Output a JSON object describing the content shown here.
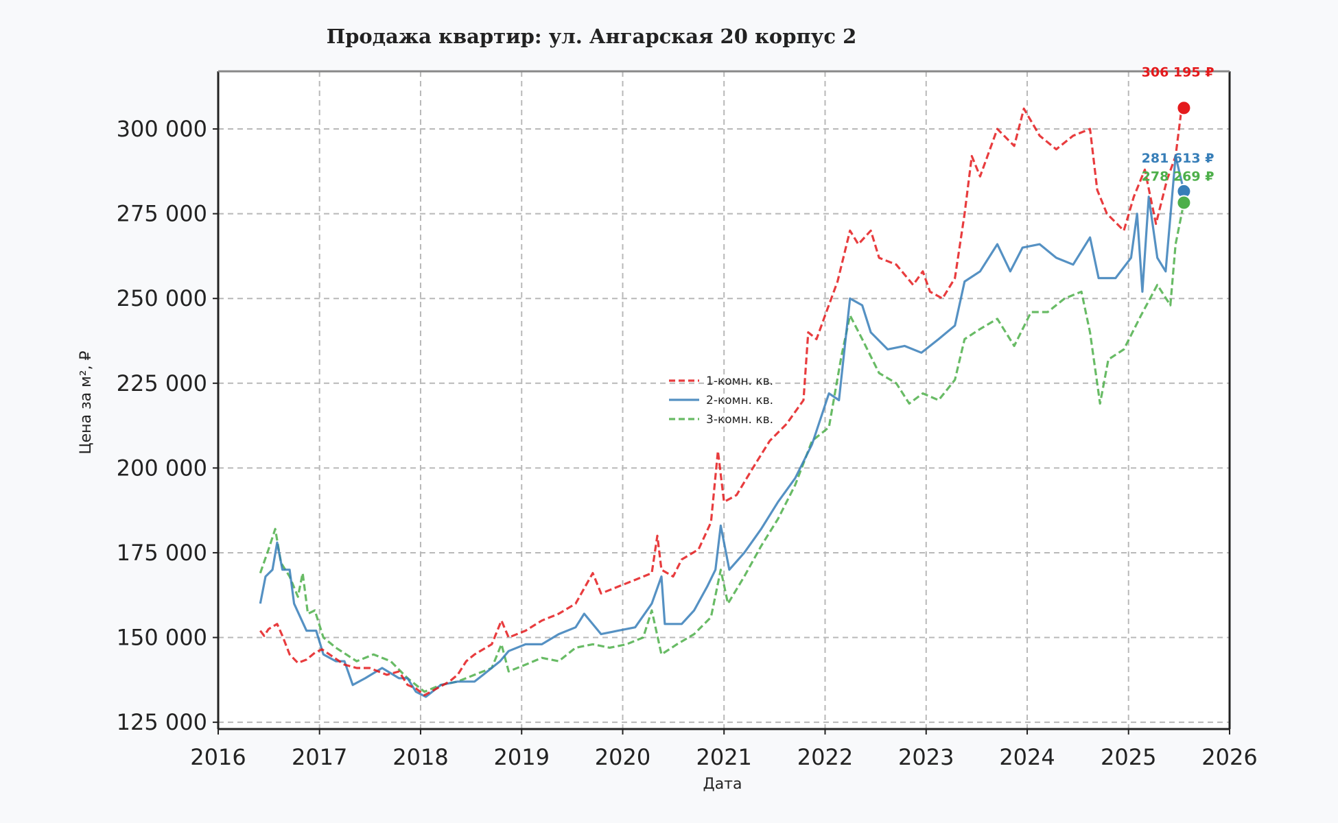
{
  "chart_data": {
    "type": "line",
    "title": "Продажа квартир: ул. Ангарская 20 корпус 2",
    "xlabel": "Дата",
    "ylabel": "Цена за м², ₽",
    "xlim": [
      "2016-01-01",
      "2026-01-01"
    ],
    "ylim": [
      123000,
      317000
    ],
    "x_ticks": [
      "2016",
      "2017",
      "2018",
      "2019",
      "2020",
      "2021",
      "2022",
      "2023",
      "2024",
      "2025",
      "2026"
    ],
    "y_ticks": [
      125000,
      150000,
      175000,
      200000,
      225000,
      250000,
      275000,
      300000
    ],
    "y_tick_labels": [
      "125 000",
      "150 000",
      "175 000",
      "200 000",
      "225 000",
      "250 000",
      "275 000",
      "300 000"
    ],
    "grid": true,
    "legend_position": "center",
    "series": [
      {
        "name": "1-комн. кв.",
        "color": "#e41a1c",
        "style": "dashed",
        "end_label": "306 195 ₽",
        "end_value": 306195,
        "points": [
          [
            "2016-06-01",
            152000
          ],
          [
            "2016-06-15",
            150500
          ],
          [
            "2016-07-01",
            152500
          ],
          [
            "2016-08-01",
            154000
          ],
          [
            "2016-08-20",
            150500
          ],
          [
            "2016-09-15",
            145000
          ],
          [
            "2016-10-15",
            142500
          ],
          [
            "2016-11-15",
            143500
          ],
          [
            "2016-12-15",
            145500
          ],
          [
            "2017-01-10",
            146500
          ],
          [
            "2017-02-15",
            144500
          ],
          [
            "2017-04-01",
            142000
          ],
          [
            "2017-05-15",
            141000
          ],
          [
            "2017-07-01",
            141000
          ],
          [
            "2017-09-01",
            139000
          ],
          [
            "2017-10-15",
            140000
          ],
          [
            "2017-11-15",
            136000
          ],
          [
            "2017-12-15",
            135000
          ],
          [
            "2018-01-15",
            133000
          ],
          [
            "2018-03-01",
            135000
          ],
          [
            "2018-04-15",
            137000
          ],
          [
            "2018-05-15",
            139000
          ],
          [
            "2018-06-15",
            143000
          ],
          [
            "2018-07-15",
            145000
          ],
          [
            "2018-09-15",
            148000
          ],
          [
            "2018-10-20",
            155000
          ],
          [
            "2018-11-15",
            150000
          ],
          [
            "2019-01-15",
            152000
          ],
          [
            "2019-03-15",
            155000
          ],
          [
            "2019-05-15",
            157000
          ],
          [
            "2019-07-15",
            160000
          ],
          [
            "2019-09-15",
            169000
          ],
          [
            "2019-10-15",
            163000
          ],
          [
            "2019-12-15",
            165000
          ],
          [
            "2020-02-15",
            167000
          ],
          [
            "2020-04-15",
            169000
          ],
          [
            "2020-05-05",
            180000
          ],
          [
            "2020-05-20",
            170000
          ],
          [
            "2020-07-01",
            168000
          ],
          [
            "2020-08-01",
            173000
          ],
          [
            "2020-10-01",
            176000
          ],
          [
            "2020-11-15",
            184000
          ],
          [
            "2020-12-10",
            205000
          ],
          [
            "2021-01-01",
            190000
          ],
          [
            "2021-02-15",
            192000
          ],
          [
            "2021-04-15",
            200000
          ],
          [
            "2021-06-15",
            208000
          ],
          [
            "2021-08-15",
            213000
          ],
          [
            "2021-10-15",
            220000
          ],
          [
            "2021-11-01",
            240000
          ],
          [
            "2021-12-01",
            238000
          ],
          [
            "2022-01-01",
            245000
          ],
          [
            "2022-02-15",
            255000
          ],
          [
            "2022-04-01",
            270000
          ],
          [
            "2022-05-01",
            266000
          ],
          [
            "2022-06-15",
            270000
          ],
          [
            "2022-07-15",
            262000
          ],
          [
            "2022-09-15",
            260000
          ],
          [
            "2022-11-15",
            254000
          ],
          [
            "2022-12-20",
            258000
          ],
          [
            "2023-01-15",
            252000
          ],
          [
            "2023-03-01",
            250000
          ],
          [
            "2023-04-15",
            256000
          ],
          [
            "2023-05-20",
            275000
          ],
          [
            "2023-06-15",
            292000
          ],
          [
            "2023-07-15",
            286000
          ],
          [
            "2023-09-15",
            300000
          ],
          [
            "2023-11-15",
            295000
          ],
          [
            "2023-12-20",
            306000
          ],
          [
            "2024-02-15",
            298000
          ],
          [
            "2024-04-15",
            294000
          ],
          [
            "2024-06-15",
            298000
          ],
          [
            "2024-08-15",
            300000
          ],
          [
            "2024-09-10",
            282000
          ],
          [
            "2024-10-15",
            275000
          ],
          [
            "2024-12-15",
            270000
          ],
          [
            "2025-01-20",
            280000
          ],
          [
            "2025-03-01",
            288000
          ],
          [
            "2025-04-10",
            272000
          ],
          [
            "2025-05-20",
            285000
          ],
          [
            "2025-06-20",
            292000
          ],
          [
            "2025-07-10",
            305000
          ],
          [
            "2025-07-20",
            306195
          ]
        ]
      },
      {
        "name": "2-комн. кв.",
        "color": "#377eb8",
        "style": "solid",
        "end_label": "281 613 ₽",
        "end_value": 281613,
        "points": [
          [
            "2016-06-01",
            160000
          ],
          [
            "2016-06-20",
            168000
          ],
          [
            "2016-07-15",
            170000
          ],
          [
            "2016-08-01",
            178000
          ],
          [
            "2016-08-20",
            170000
          ],
          [
            "2016-09-15",
            170000
          ],
          [
            "2016-10-01",
            160000
          ],
          [
            "2016-11-15",
            152000
          ],
          [
            "2016-12-20",
            152000
          ],
          [
            "2017-01-15",
            145000
          ],
          [
            "2017-03-01",
            143000
          ],
          [
            "2017-04-01",
            143000
          ],
          [
            "2017-05-01",
            136000
          ],
          [
            "2017-06-15",
            138000
          ],
          [
            "2017-08-15",
            141000
          ],
          [
            "2017-10-15",
            138000
          ],
          [
            "2017-11-15",
            138000
          ],
          [
            "2017-12-15",
            134000
          ],
          [
            "2018-01-20",
            132500
          ],
          [
            "2018-03-15",
            136000
          ],
          [
            "2018-05-15",
            137000
          ],
          [
            "2018-07-15",
            137000
          ],
          [
            "2018-08-15",
            139000
          ],
          [
            "2018-10-15",
            143000
          ],
          [
            "2018-11-15",
            146000
          ],
          [
            "2019-01-15",
            148000
          ],
          [
            "2019-03-15",
            148000
          ],
          [
            "2019-05-15",
            151000
          ],
          [
            "2019-07-15",
            153000
          ],
          [
            "2019-08-15",
            157000
          ],
          [
            "2019-10-15",
            151000
          ],
          [
            "2019-12-15",
            152000
          ],
          [
            "2020-02-15",
            153000
          ],
          [
            "2020-04-15",
            160000
          ],
          [
            "2020-05-20",
            168000
          ],
          [
            "2020-06-01",
            154000
          ],
          [
            "2020-08-01",
            154000
          ],
          [
            "2020-09-15",
            158000
          ],
          [
            "2020-11-01",
            165000
          ],
          [
            "2020-12-01",
            170000
          ],
          [
            "2020-12-20",
            183000
          ],
          [
            "2021-01-20",
            170000
          ],
          [
            "2021-03-15",
            175000
          ],
          [
            "2021-05-15",
            182000
          ],
          [
            "2021-07-15",
            190000
          ],
          [
            "2021-09-15",
            197000
          ],
          [
            "2021-11-15",
            207000
          ],
          [
            "2022-01-15",
            222000
          ],
          [
            "2022-02-20",
            220000
          ],
          [
            "2022-04-01",
            250000
          ],
          [
            "2022-05-15",
            248000
          ],
          [
            "2022-06-15",
            240000
          ],
          [
            "2022-08-15",
            235000
          ],
          [
            "2022-10-15",
            236000
          ],
          [
            "2022-12-15",
            234000
          ],
          [
            "2023-02-15",
            238000
          ],
          [
            "2023-04-15",
            242000
          ],
          [
            "2023-05-20",
            255000
          ],
          [
            "2023-07-15",
            258000
          ],
          [
            "2023-09-15",
            266000
          ],
          [
            "2023-11-01",
            258000
          ],
          [
            "2023-12-15",
            265000
          ],
          [
            "2024-02-15",
            266000
          ],
          [
            "2024-04-15",
            262000
          ],
          [
            "2024-06-15",
            260000
          ],
          [
            "2024-08-15",
            268000
          ],
          [
            "2024-09-15",
            256000
          ],
          [
            "2024-11-15",
            256000
          ],
          [
            "2025-01-10",
            262000
          ],
          [
            "2025-02-01",
            275000
          ],
          [
            "2025-02-20",
            252000
          ],
          [
            "2025-03-15",
            280000
          ],
          [
            "2025-04-15",
            262000
          ],
          [
            "2025-05-15",
            258000
          ],
          [
            "2025-06-20",
            292000
          ],
          [
            "2025-07-20",
            281613
          ]
        ]
      },
      {
        "name": "3-комн. кв.",
        "color": "#4daf4a",
        "style": "dashed",
        "end_label": "278 269 ₽",
        "end_value": 278269,
        "points": [
          [
            "2016-06-01",
            169000
          ],
          [
            "2016-07-01",
            176000
          ],
          [
            "2016-07-25",
            182000
          ],
          [
            "2016-08-15",
            172000
          ],
          [
            "2016-09-15",
            168000
          ],
          [
            "2016-10-15",
            162000
          ],
          [
            "2016-11-01",
            169000
          ],
          [
            "2016-11-20",
            157000
          ],
          [
            "2016-12-15",
            158000
          ],
          [
            "2017-01-15",
            150000
          ],
          [
            "2017-03-01",
            147000
          ],
          [
            "2017-05-15",
            143000
          ],
          [
            "2017-07-15",
            145000
          ],
          [
            "2017-09-15",
            143000
          ],
          [
            "2017-11-15",
            138000
          ],
          [
            "2018-01-15",
            134000
          ],
          [
            "2018-03-15",
            136000
          ],
          [
            "2018-05-15",
            137000
          ],
          [
            "2018-07-15",
            139000
          ],
          [
            "2018-09-15",
            141000
          ],
          [
            "2018-10-20",
            148000
          ],
          [
            "2018-11-15",
            140000
          ],
          [
            "2019-01-15",
            142000
          ],
          [
            "2019-03-15",
            144000
          ],
          [
            "2019-05-15",
            143000
          ],
          [
            "2019-07-15",
            147000
          ],
          [
            "2019-09-15",
            148000
          ],
          [
            "2019-11-15",
            147000
          ],
          [
            "2020-01-15",
            148000
          ],
          [
            "2020-03-15",
            150000
          ],
          [
            "2020-04-15",
            158000
          ],
          [
            "2020-05-20",
            145000
          ],
          [
            "2020-07-15",
            148000
          ],
          [
            "2020-09-15",
            151000
          ],
          [
            "2020-11-15",
            156000
          ],
          [
            "2020-12-20",
            170000
          ],
          [
            "2021-01-15",
            160000
          ],
          [
            "2021-03-15",
            168000
          ],
          [
            "2021-05-15",
            177000
          ],
          [
            "2021-07-15",
            185000
          ],
          [
            "2021-09-15",
            195000
          ],
          [
            "2021-11-15",
            208000
          ],
          [
            "2022-01-15",
            212000
          ],
          [
            "2022-03-01",
            233000
          ],
          [
            "2022-04-01",
            245000
          ],
          [
            "2022-05-15",
            238000
          ],
          [
            "2022-07-15",
            228000
          ],
          [
            "2022-09-15",
            225000
          ],
          [
            "2022-11-01",
            219000
          ],
          [
            "2022-12-20",
            222000
          ],
          [
            "2023-02-15",
            220000
          ],
          [
            "2023-04-15",
            226000
          ],
          [
            "2023-05-20",
            238000
          ],
          [
            "2023-07-15",
            241000
          ],
          [
            "2023-09-15",
            244000
          ],
          [
            "2023-11-15",
            236000
          ],
          [
            "2024-01-15",
            246000
          ],
          [
            "2024-03-15",
            246000
          ],
          [
            "2024-05-15",
            250000
          ],
          [
            "2024-07-15",
            252000
          ],
          [
            "2024-08-15",
            240000
          ],
          [
            "2024-09-20",
            219000
          ],
          [
            "2024-10-20",
            232000
          ],
          [
            "2024-12-15",
            235000
          ],
          [
            "2025-02-15",
            245000
          ],
          [
            "2025-04-15",
            254000
          ],
          [
            "2025-06-01",
            248000
          ],
          [
            "2025-06-20",
            266000
          ],
          [
            "2025-07-20",
            278269
          ]
        ]
      }
    ]
  }
}
